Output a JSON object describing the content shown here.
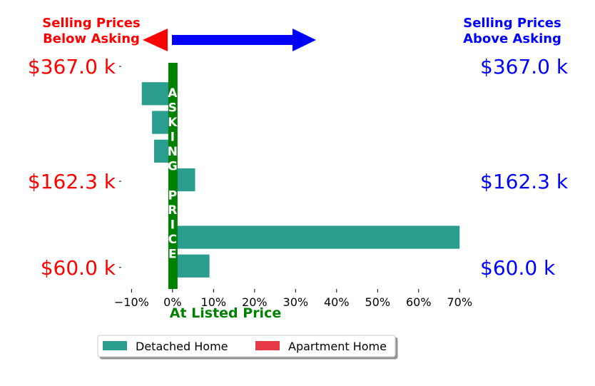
{
  "chart_data": {
    "type": "bar",
    "orientation": "horizontal",
    "x_tick_labels": [
      "−10%",
      "0%",
      "10%",
      "20%",
      "30%",
      "40%",
      "50%",
      "60%",
      "70%"
    ],
    "x_ticks": [
      -10,
      0,
      10,
      20,
      30,
      40,
      50,
      60,
      70
    ],
    "xlim": [
      -12.5,
      71
    ],
    "ylim": [
      0,
      8
    ],
    "xlabel": "At Listed Price",
    "y_labels_left": [
      "$367.0 k",
      "$162.3 k",
      "$60.0 k"
    ],
    "y_labels_right": [
      "$367.0 k",
      "$162.3 k",
      "$60.0 k"
    ],
    "y_label_positions": [
      7.75,
      3.75,
      0.75
    ],
    "series": [
      {
        "name": "Detached Home",
        "color": "#2a9d8f",
        "bars": [
          {
            "y": 6.8,
            "value": -7.5
          },
          {
            "y": 5.8,
            "value": -5.0
          },
          {
            "y": 4.8,
            "value": -4.5
          },
          {
            "y": 3.8,
            "value": 5.5
          },
          {
            "y": 1.8,
            "value": 70.0
          },
          {
            "y": 0.8,
            "value": 9.0
          }
        ]
      },
      {
        "name": "Apartment Home",
        "color": "#e63946",
        "bars": []
      }
    ],
    "annotations": {
      "left_title": [
        "Selling Prices",
        "Below Asking"
      ],
      "right_title": [
        "Selling Prices",
        "Above Asking"
      ],
      "center_letters": [
        "A",
        "S",
        "K",
        "I",
        "N",
        "G",
        "",
        "P",
        "R",
        "I",
        "C",
        "E"
      ],
      "left_color": "#ff0000",
      "right_color": "#0000ff",
      "asking_color": "#008000"
    },
    "legend": {
      "placement": "bottom-center",
      "entries": [
        "Detached Home",
        "Apartment Home"
      ]
    }
  }
}
